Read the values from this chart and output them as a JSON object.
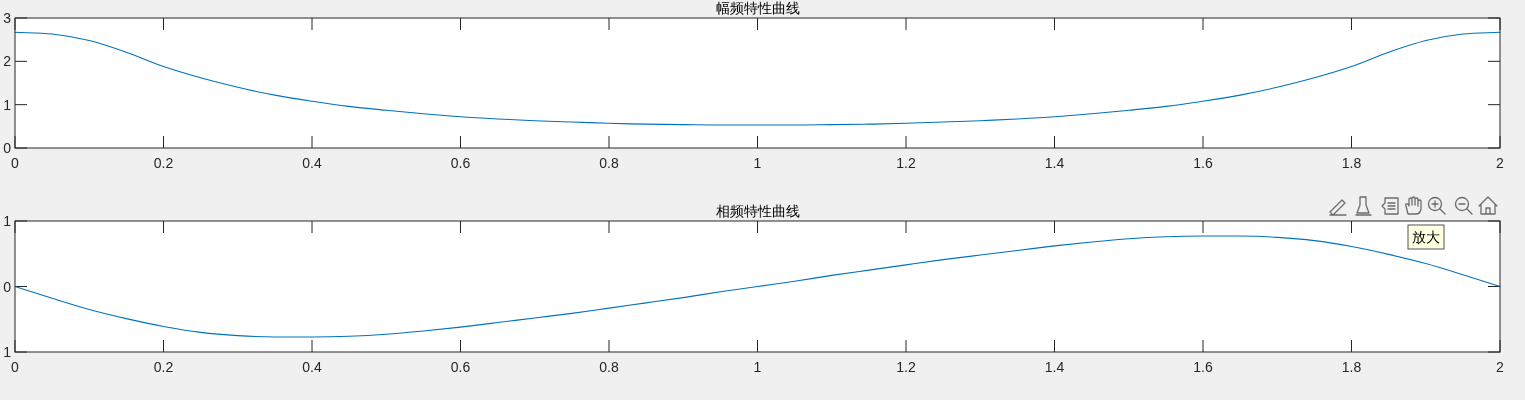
{
  "chart_data": [
    {
      "type": "line",
      "title": "幅频特性曲线",
      "color": "#0072bd",
      "x": [
        0,
        0.05,
        0.1,
        0.15,
        0.2,
        0.25,
        0.3,
        0.35,
        0.4,
        0.45,
        0.5,
        0.55,
        0.6,
        0.65,
        0.7,
        0.75,
        0.8,
        0.85,
        0.9,
        0.95,
        1,
        1.05,
        1.1,
        1.15,
        1.2,
        1.25,
        1.3,
        1.35,
        1.4,
        1.45,
        1.5,
        1.55,
        1.6,
        1.65,
        1.7,
        1.75,
        1.8,
        1.85,
        1.9,
        1.95,
        2
      ],
      "values": [
        2.67,
        2.63,
        2.48,
        2.21,
        1.88,
        1.62,
        1.4,
        1.22,
        1.08,
        0.96,
        0.87,
        0.79,
        0.72,
        0.67,
        0.63,
        0.6,
        0.57,
        0.55,
        0.54,
        0.53,
        0.53,
        0.53,
        0.54,
        0.55,
        0.57,
        0.6,
        0.63,
        0.67,
        0.72,
        0.79,
        0.87,
        0.96,
        1.08,
        1.22,
        1.4,
        1.62,
        1.88,
        2.21,
        2.48,
        2.63,
        2.67
      ],
      "xlim": [
        0,
        2
      ],
      "ylim": [
        0,
        3
      ],
      "xticks": [
        0,
        0.2,
        0.4,
        0.6,
        0.8,
        1,
        1.2,
        1.4,
        1.6,
        1.8,
        2
      ],
      "yticks": [
        0,
        1,
        2,
        3
      ]
    },
    {
      "type": "line",
      "title": "相频特性曲线",
      "color": "#0072bd",
      "x": [
        0,
        0.05,
        0.1,
        0.15,
        0.2,
        0.25,
        0.3,
        0.35,
        0.4,
        0.45,
        0.5,
        0.55,
        0.6,
        0.65,
        0.7,
        0.75,
        0.8,
        0.85,
        0.9,
        0.95,
        1,
        1.05,
        1.1,
        1.15,
        1.2,
        1.25,
        1.3,
        1.35,
        1.4,
        1.45,
        1.5,
        1.55,
        1.6,
        1.65,
        1.7,
        1.75,
        1.8,
        1.85,
        1.9,
        1.95,
        2
      ],
      "values": [
        0,
        -0.18,
        -0.35,
        -0.49,
        -0.61,
        -0.7,
        -0.75,
        -0.77,
        -0.77,
        -0.76,
        -0.73,
        -0.68,
        -0.62,
        -0.55,
        -0.48,
        -0.41,
        -0.33,
        -0.25,
        -0.17,
        -0.08,
        0,
        0.08,
        0.17,
        0.25,
        0.33,
        0.41,
        0.48,
        0.55,
        0.62,
        0.68,
        0.73,
        0.76,
        0.77,
        0.77,
        0.75,
        0.7,
        0.61,
        0.49,
        0.35,
        0.18,
        0
      ],
      "xlim": [
        0,
        2
      ],
      "ylim": [
        -1,
        1
      ],
      "xticks": [
        0,
        0.2,
        0.4,
        0.6,
        0.8,
        1,
        1.2,
        1.4,
        1.6,
        1.8,
        2
      ],
      "yticks": [
        {
          "value": -1,
          "label": "1"
        },
        0,
        1
      ],
      "annotations": [
        "放大"
      ]
    }
  ]
}
